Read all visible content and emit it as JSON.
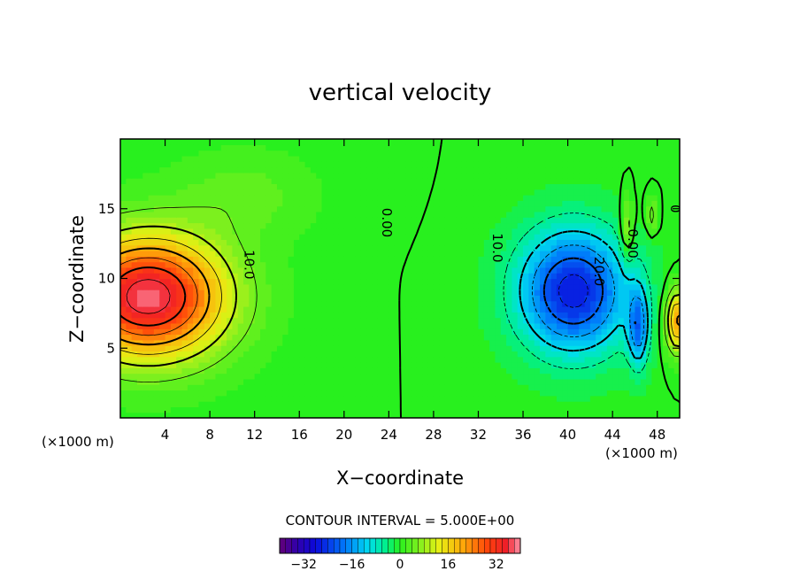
{
  "chart_data": {
    "type": "heatmap",
    "title": "vertical velocity",
    "xlabel": "X−coordinate",
    "ylabel": "Z−coordinate",
    "x_unit_left": "(×1000 m)",
    "x_unit_right": "(×1000 m)",
    "xlim": [
      0,
      50
    ],
    "ylim": [
      0,
      20
    ],
    "x_ticks": [
      4,
      8,
      12,
      16,
      20,
      24,
      28,
      32,
      36,
      40,
      44,
      48
    ],
    "y_ticks": [
      5,
      10,
      15
    ],
    "x_tick_labels": [
      "4",
      "8",
      "12",
      "16",
      "20",
      "24",
      "28",
      "32",
      "36",
      "40",
      "44",
      "48"
    ],
    "y_tick_labels": [
      "5",
      "10",
      "15"
    ],
    "contour_interval_text": "CONTOUR INTERVAL = 5.000E+00",
    "contour_interval": 5,
    "contour_labels": [
      {
        "text": "10.0",
        "x": 11.5,
        "z": 11.0
      },
      {
        "text": "0.00",
        "x": 23.8,
        "z": 14.0
      },
      {
        "text": "10.0",
        "x": 33.7,
        "z": 12.2
      },
      {
        "text": "20.0",
        "x": 42.8,
        "z": 10.5
      },
      {
        "text": "0.00",
        "x": 45.8,
        "z": 12.5
      },
      {
        "text": "0",
        "x": 49.6,
        "z": 15.0
      }
    ],
    "features": [
      {
        "name": "updraft",
        "x": 2.0,
        "z": 8.3,
        "peak": 38
      },
      {
        "name": "downdraft",
        "x": 40.5,
        "z": 8.8,
        "peak": -27
      },
      {
        "name": "downdraft-small",
        "x": 46.3,
        "z": 6.5,
        "peak": -30
      },
      {
        "name": "updraft-edge",
        "x": 49.8,
        "z": 7.0,
        "peak": 22
      }
    ],
    "colorbar": {
      "min": -40,
      "max": 40,
      "tick_values": [
        -32,
        -16,
        0,
        16,
        32
      ],
      "tick_labels": [
        "−32",
        "−16",
        "0",
        "16",
        "32"
      ],
      "colormap": "rainbow (purple-blue-cyan-green-yellow-red-pink)"
    },
    "grid": false,
    "legend": "colorbar-bottom"
  }
}
